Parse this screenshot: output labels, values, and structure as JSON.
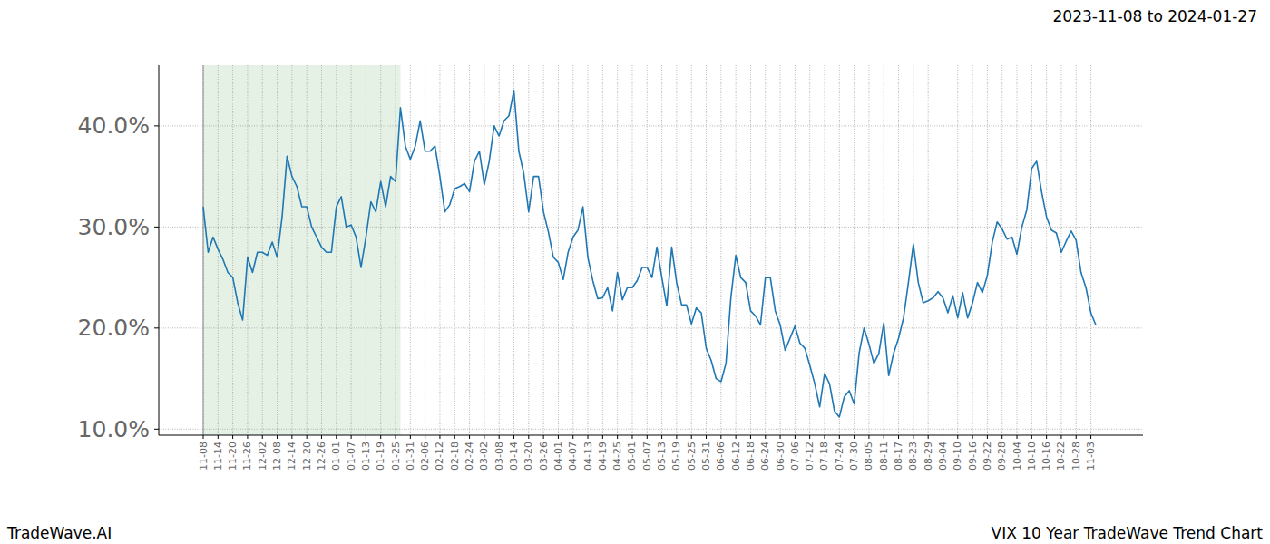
{
  "chart_data": {
    "type": "line",
    "title": "VIX 10 Year TradeWave Trend Chart",
    "subtitle": "2023-11-08 to 2024-01-27",
    "brand": "TradeWave.AI",
    "color": "#1f77b4",
    "grid": true,
    "highlight": {
      "start": 0,
      "end": 40
    },
    "ylim": [
      9.4,
      46.0
    ],
    "yticks": [
      {
        "value": 10,
        "label": "10.0%"
      },
      {
        "value": 20,
        "label": "20.0%"
      },
      {
        "value": 30,
        "label": "30.0%"
      },
      {
        "value": 40,
        "label": "40.0%"
      }
    ],
    "categories": [
      "11-08",
      null,
      null,
      "11-14",
      null,
      null,
      "11-20",
      null,
      null,
      "11-26",
      null,
      null,
      "12-02",
      null,
      null,
      "12-08",
      null,
      null,
      "12-14",
      null,
      null,
      "12-20",
      null,
      null,
      "12-26",
      null,
      null,
      "01-01",
      null,
      null,
      "01-07",
      null,
      null,
      "01-13",
      null,
      null,
      "01-19",
      null,
      null,
      "01-25",
      null,
      null,
      "01-31",
      null,
      null,
      "02-06",
      null,
      null,
      "02-12",
      null,
      null,
      "02-18",
      null,
      null,
      "02-24",
      null,
      null,
      "03-02",
      null,
      null,
      "03-08",
      null,
      null,
      "03-14",
      null,
      null,
      "03-20",
      null,
      null,
      "03-26",
      null,
      null,
      "04-01",
      null,
      null,
      "04-07",
      null,
      null,
      "04-13",
      null,
      null,
      "04-19",
      null,
      null,
      "04-25",
      null,
      null,
      "05-01",
      null,
      null,
      "05-07",
      null,
      null,
      "05-13",
      null,
      null,
      "05-19",
      null,
      null,
      "05-25",
      null,
      null,
      "05-31",
      null,
      null,
      "06-06",
      null,
      null,
      "06-12",
      null,
      null,
      "06-18",
      null,
      null,
      "06-24",
      null,
      null,
      "06-30",
      null,
      null,
      "07-06",
      null,
      null,
      "07-12",
      null,
      null,
      "07-18",
      null,
      null,
      "07-24",
      null,
      null,
      "07-30",
      null,
      null,
      "08-05",
      null,
      null,
      "08-11",
      null,
      null,
      "08-17",
      null,
      null,
      "08-23",
      null,
      null,
      "08-29",
      null,
      null,
      "09-04",
      null,
      null,
      "09-10",
      null,
      null,
      "09-16",
      null,
      null,
      "09-22",
      null,
      null,
      "09-28",
      null,
      null,
      "10-04",
      null,
      null,
      "10-10",
      null,
      null,
      "10-16",
      null,
      null,
      "10-22",
      null,
      null,
      "10-28",
      null,
      null,
      "11-03",
      null
    ],
    "values": [
      32,
      27.5,
      29,
      27.8,
      26.8,
      25.5,
      25,
      22.5,
      20.8,
      27,
      25.5,
      27.5,
      27.5,
      27.2,
      28.5,
      27,
      31,
      37,
      35,
      34,
      32,
      32,
      30,
      29,
      28,
      27.5,
      27.5,
      32,
      33,
      30,
      30.2,
      29,
      26,
      29,
      32.5,
      31.5,
      34.5,
      32,
      35,
      34.5,
      41.8,
      38,
      36.7,
      38,
      40.5,
      37.5,
      37.5,
      38,
      35,
      31.5,
      32.2,
      33.8,
      34,
      34.3,
      33.5,
      36.5,
      37.5,
      34.2,
      36.5,
      40,
      39,
      40.5,
      41,
      43.5,
      37.5,
      35.3,
      31.5,
      35,
      35,
      31.5,
      29.5,
      27,
      26.5,
      24.8,
      27.5,
      29,
      29.7,
      32,
      27,
      24.7,
      22.9,
      23,
      24,
      21.7,
      25.5,
      22.8,
      24,
      24,
      24.7,
      26,
      26,
      25,
      28,
      25,
      22.2,
      28,
      24.5,
      22.3,
      22.3,
      20.4,
      22,
      21.5,
      18,
      16.8,
      15,
      14.7,
      16.5,
      23,
      27.2,
      25,
      24.5,
      21.7,
      21.2,
      20.3,
      25,
      25,
      21.7,
      20.3,
      17.8,
      19,
      20.2,
      18.5,
      18,
      16.3,
      14.5,
      12.2,
      15.5,
      14.5,
      11.8,
      11.2,
      13.2,
      13.8,
      12.5,
      17.5,
      20,
      18.4,
      16.5,
      17.5,
      20.5,
      15.3,
      17.5,
      19,
      21,
      24.5,
      28.3,
      24.5,
      22.5,
      22.7,
      23,
      23.6,
      23,
      21.5,
      23.2,
      21,
      23.5,
      21,
      22.5,
      24.5,
      23.5,
      25.2,
      28.5,
      30.5,
      29.8,
      28.8,
      29,
      27.3,
      30,
      31.7,
      35.8,
      36.5,
      33.5,
      31,
      29.7,
      29.4,
      27.5,
      28.6,
      29.6,
      28.7,
      25.5,
      24,
      21.5,
      20.3
    ]
  }
}
